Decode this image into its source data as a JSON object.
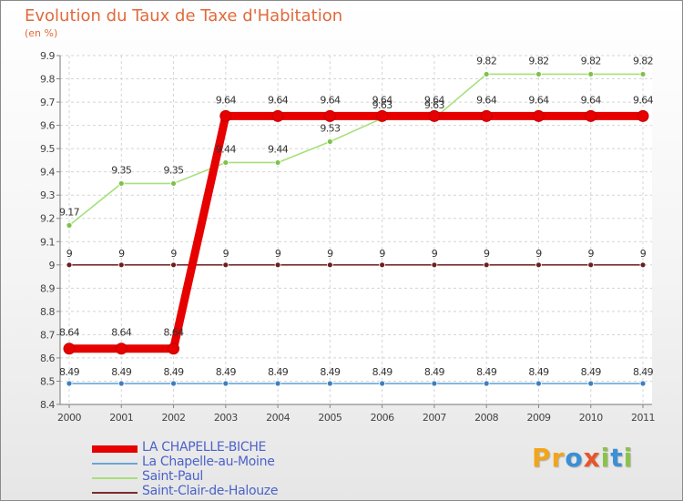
{
  "header": {
    "title": "Evolution du Taux de Taxe d'Habitation",
    "subtitle": "(en %)"
  },
  "logo": {
    "letters": [
      "P",
      "r",
      "o",
      "x",
      "i",
      "t",
      "i"
    ],
    "colors": [
      "#f2a51a",
      "#f2a51a",
      "#3a8fd6",
      "#e8542c",
      "#8bc34a",
      "#3a8fd6",
      "#8bc34a"
    ]
  },
  "chart_data": {
    "type": "line",
    "title": "Evolution du Taux de Taxe d'Habitation",
    "ylabel": "(en %)",
    "xlabel": "",
    "categories": [
      "2000",
      "2001",
      "2002",
      "2003",
      "2004",
      "2005",
      "2006",
      "2007",
      "2008",
      "2009",
      "2010",
      "2011"
    ],
    "ylim": [
      8.4,
      9.9
    ],
    "yticks": [
      "8.4",
      "8.5",
      "8.6",
      "8.7",
      "8.8",
      "8.9",
      "9",
      "9.1",
      "9.2",
      "9.3",
      "9.4",
      "9.5",
      "9.6",
      "9.7",
      "9.8",
      "9.9"
    ],
    "grid": true,
    "legend_position": "bottom-left",
    "series": [
      {
        "name": "LA CHAPELLE-BICHE",
        "color": "#e60000",
        "point_color": "#e60000",
        "values": [
          8.64,
          8.64,
          8.64,
          9.64,
          9.64,
          9.64,
          9.64,
          9.64,
          9.64,
          9.64,
          9.64,
          9.64
        ],
        "labels": [
          "8.64",
          "8.64",
          "8.64",
          "9.64",
          "9.64",
          "9.64",
          "9.64",
          "9.64",
          "9.64",
          "9.64",
          "9.64",
          "9.64"
        ]
      },
      {
        "name": "La Chapelle-au-Moine",
        "color": "#6aa5d6",
        "point_color": "#3d7fc0",
        "values": [
          8.49,
          8.49,
          8.49,
          8.49,
          8.49,
          8.49,
          8.49,
          8.49,
          8.49,
          8.49,
          8.49,
          8.49
        ],
        "labels": [
          "8.49",
          "8.49",
          "8.49",
          "8.49",
          "8.49",
          "8.49",
          "8.49",
          "8.49",
          "8.49",
          "8.49",
          "8.49",
          "8.49"
        ]
      },
      {
        "name": "Saint-Paul",
        "color": "#a6e07a",
        "point_color": "#7fc14a",
        "values": [
          9.17,
          9.35,
          9.35,
          9.44,
          9.44,
          9.53,
          9.63,
          9.63,
          9.82,
          9.82,
          9.82,
          9.82
        ],
        "labels": [
          "9.17",
          "9.35",
          "9.35",
          "9.44",
          "9.44",
          "9.53",
          "9.63",
          "9.63",
          "9.82",
          "9.82",
          "9.82",
          "9.82"
        ]
      },
      {
        "name": "Saint-Clair-de-Halouze",
        "color": "#7a2e2e",
        "point_color": "#6a2020",
        "values": [
          9,
          9,
          9,
          9,
          9,
          9,
          9,
          9,
          9,
          9,
          9,
          9
        ],
        "labels": [
          "9",
          "9",
          "9",
          "9",
          "9",
          "9",
          "9",
          "9",
          "9",
          "9",
          "9",
          "9"
        ]
      }
    ]
  }
}
